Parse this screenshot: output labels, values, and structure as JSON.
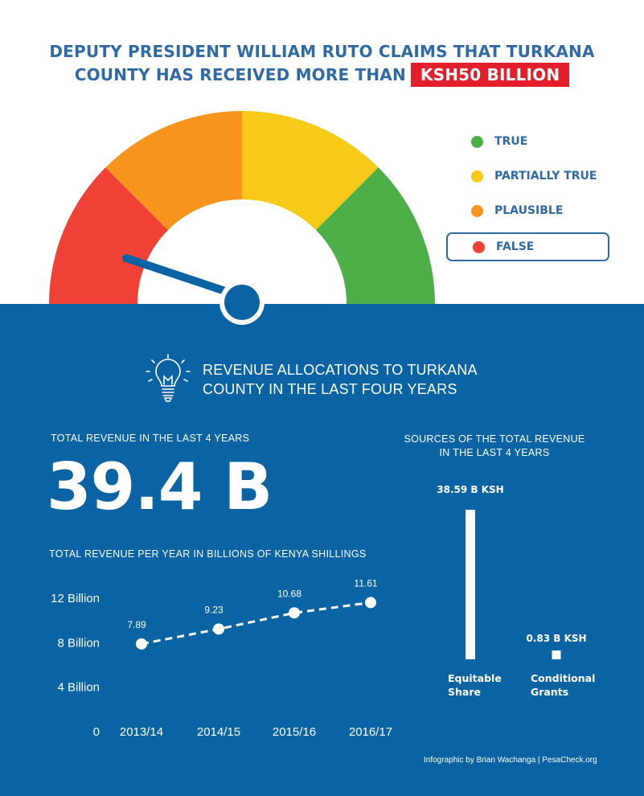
{
  "header": {
    "title_line1": "DEPUTY PRESIDENT WILLIAM RUTO CLAIMS THAT TURKANA",
    "title_line2": "COUNTY HAS RECEIVED MORE THAN",
    "title_highlight": "KSH50 BILLION",
    "highlight_color": "#e21f2b"
  },
  "gauge": {
    "segments": [
      {
        "name": "false",
        "color": "#ef4136"
      },
      {
        "name": "plausible",
        "color": "#f7941d"
      },
      {
        "name": "partially-true",
        "color": "#f7c919"
      },
      {
        "name": "true",
        "color": "#4caf48"
      }
    ],
    "needle_color": "#0a64a4",
    "verdict": "FALSE"
  },
  "legend": [
    {
      "key": "true",
      "label": "TRUE",
      "color": "#4caf48",
      "selected": false
    },
    {
      "key": "partially-true",
      "label": "PARTIALLY TRUE",
      "color": "#f7c919",
      "selected": false
    },
    {
      "key": "plausible",
      "label": "PLAUSIBLE",
      "color": "#f7941d",
      "selected": false
    },
    {
      "key": "false",
      "label": "FALSE",
      "color": "#ef4136",
      "selected": true
    }
  ],
  "panel": {
    "title_line1": "REVENUE ALLOCATIONS TO TURKANA",
    "title_line2": "COUNTY IN THE LAST FOUR YEARS",
    "icon": "lightbulb-icon",
    "total_label": "TOTAL REVENUE IN THE LAST 4 YEARS",
    "total_value": "39.4 B",
    "line_chart_label": "TOTAL REVENUE PER YEAR IN BILLIONS OF KENYA SHILLINGS",
    "sources_label_line1": "SOURCES OF THE TOTAL REVENUE",
    "sources_label_line2": "IN THE LAST 4 YEARS",
    "credit": "Infographic by Brian Wachanga | PesaCheck.org"
  },
  "chart_data": [
    {
      "type": "line",
      "x": [
        "2013/14",
        "2014/15",
        "2015/16",
        "2016/17"
      ],
      "values": [
        7.89,
        9.23,
        10.68,
        11.61
      ],
      "data_labels": [
        "7.89",
        "9.23",
        "10.68",
        "11.61"
      ],
      "ytick_values": [
        0,
        4,
        8,
        12
      ],
      "ytick_labels": [
        "0",
        "4 Billion",
        "8 Billion",
        "12 Billion"
      ],
      "ylim": [
        0,
        12
      ],
      "line_style": "dashed",
      "grid": false
    },
    {
      "type": "bar",
      "categories": [
        "Equitable Share",
        "Conditional Grants"
      ],
      "category_lines": [
        [
          "Equitable",
          "Share"
        ],
        [
          "Conditional",
          "Grants"
        ]
      ],
      "values": [
        38.59,
        0.83
      ],
      "value_labels": [
        "38.59 B KSH",
        "0.83 B KSH"
      ]
    }
  ]
}
